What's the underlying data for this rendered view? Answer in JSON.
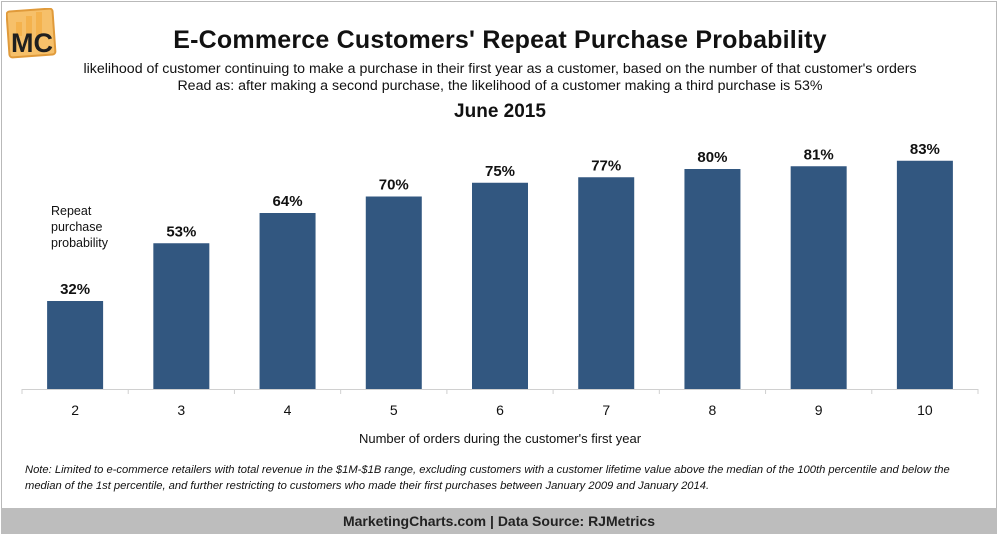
{
  "logo": {
    "text": "MC"
  },
  "title": "E-Commerce Customers' Repeat Purchase Probability",
  "subtitle_line1": "likelihood of customer continuing to make a purchase in their first year as a customer, based on the number of that customer's orders",
  "subtitle_line2": "Read as: after making a second purchase, the likelihood of a customer making a third purchase is 53%",
  "date": "June 2015",
  "series_label": "Repeat purchase probability",
  "note": "Note: Limited to e-commerce retailers with total revenue in the $1M-$1B range, excluding customers with a customer lifetime value above the median of the 100th percentile and below the median of the 1st percentile, and further restricting to customers who made their first purchases between January 2009 and January 2014.",
  "footer": "MarketingCharts.com | Data Source: RJMetrics",
  "colors": {
    "bar": "#325780",
    "footer_bg": "#bdbdbd"
  },
  "chart_data": {
    "type": "bar",
    "title": "E-Commerce Customers' Repeat Purchase Probability",
    "xlabel": "Number of orders during the customer's first year",
    "ylabel": "",
    "series_name": "Repeat purchase probability",
    "categories": [
      "2",
      "3",
      "4",
      "5",
      "6",
      "7",
      "8",
      "9",
      "10"
    ],
    "values": [
      32,
      53,
      64,
      70,
      75,
      77,
      80,
      81,
      83
    ],
    "data_labels": [
      "32%",
      "53%",
      "64%",
      "70%",
      "75%",
      "77%",
      "80%",
      "81%",
      "83%"
    ],
    "ylim": [
      0,
      100
    ],
    "grid": false,
    "legend": "none"
  }
}
